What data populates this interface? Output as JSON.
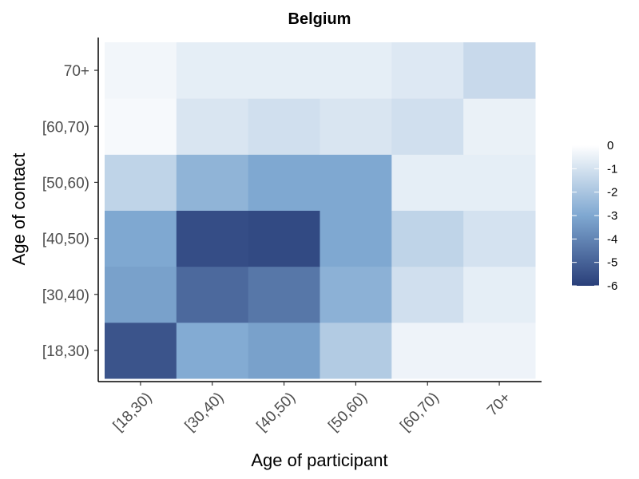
{
  "chart_data": {
    "type": "heatmap",
    "title": "Belgium",
    "xlabel": "Age of participant",
    "ylabel": "Age of contact",
    "x_categories": [
      "[18,30)",
      "[30,40)",
      "[40,50)",
      "[50,60)",
      "[60,70)",
      "70+"
    ],
    "y_categories": [
      "[18,30)",
      "[30,40)",
      "[40,50)",
      "[50,60)",
      "[60,70)",
      "70+"
    ],
    "values": [
      [
        -5.4,
        -2.9,
        -3.2,
        -1.8,
        -0.4,
        -0.4
      ],
      [
        -3.2,
        -4.8,
        -4.4,
        -2.7,
        -1.1,
        -0.6
      ],
      [
        -3.0,
        -5.6,
        -5.7,
        -3.0,
        -1.5,
        -1.0
      ],
      [
        -1.5,
        -2.6,
        -3.0,
        -3.0,
        -0.6,
        -0.6
      ],
      [
        -0.2,
        -0.9,
        -1.1,
        -0.9,
        -1.1,
        -0.5
      ],
      [
        -0.3,
        -0.6,
        -0.6,
        -0.6,
        -0.8,
        -1.3
      ]
    ],
    "colorbar": {
      "min": -6,
      "max": 0,
      "ticks": [
        "0",
        "-1",
        "-2",
        "-3",
        "-4",
        "-5",
        "-6"
      ],
      "tick_values": [
        0,
        -1,
        -2,
        -3,
        -4,
        -5,
        -6
      ],
      "color_low": "#2a3f7a",
      "color_mid": "#7fa8d1",
      "color_high": "#ffffff"
    },
    "legend_position": "right",
    "grid": false
  }
}
